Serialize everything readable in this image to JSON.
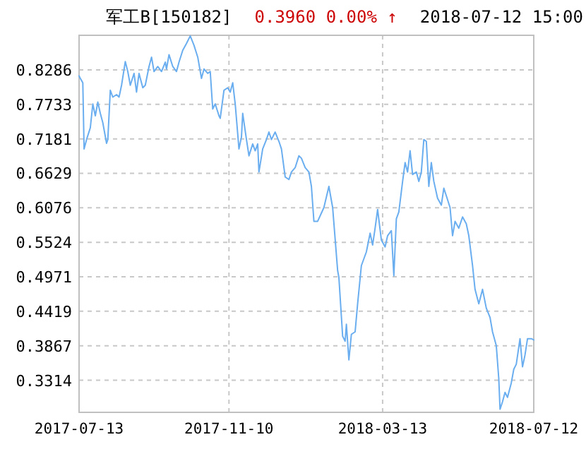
{
  "chart_data": {
    "type": "line",
    "title": "军工B[150182]",
    "subtitle": "0.3960  0.00% ↑",
    "annotations": [
      "2018-07-12 15:00"
    ],
    "x": [
      "2017-07-13",
      "2017-07-14",
      "2017-07-16",
      "2017-07-17",
      "2017-07-19",
      "2017-07-22",
      "2017-07-24",
      "2017-07-26",
      "2017-07-28",
      "2017-07-30",
      "2017-08-01",
      "2017-08-04",
      "2017-08-05",
      "2017-08-07",
      "2017-08-09",
      "2017-08-12",
      "2017-08-14",
      "2017-08-16",
      "2017-08-19",
      "2017-08-21",
      "2017-08-23",
      "2017-08-26",
      "2017-08-28",
      "2017-08-30",
      "2017-09-02",
      "2017-09-04",
      "2017-09-07",
      "2017-09-09",
      "2017-09-11",
      "2017-09-14",
      "2017-09-17",
      "2017-09-20",
      "2017-09-21",
      "2017-09-23",
      "2017-09-26",
      "2017-09-29",
      "2017-10-01",
      "2017-10-04",
      "2017-10-07",
      "2017-10-10",
      "2017-10-13",
      "2017-10-16",
      "2017-10-19",
      "2017-10-21",
      "2017-10-24",
      "2017-10-26",
      "2017-10-28",
      "2017-10-30",
      "2017-11-02",
      "2017-11-03",
      "2017-11-06",
      "2017-11-09",
      "2017-11-11",
      "2017-11-13",
      "2017-11-15",
      "2017-11-18",
      "2017-11-20",
      "2017-11-21",
      "2017-11-24",
      "2017-11-26",
      "2017-11-29",
      "2017-12-01",
      "2017-12-03",
      "2017-12-04",
      "2017-12-07",
      "2017-12-10",
      "2017-12-12",
      "2017-12-14",
      "2017-12-17",
      "2017-12-20",
      "2017-12-22",
      "2017-12-25",
      "2017-12-28",
      "2017-12-30",
      "2018-01-02",
      "2018-01-05",
      "2018-01-07",
      "2018-01-10",
      "2018-01-13",
      "2018-01-15",
      "2018-01-17",
      "2018-01-20",
      "2018-01-25",
      "2018-01-29",
      "2018-02-01",
      "2018-02-05",
      "2018-02-06",
      "2018-02-09",
      "2018-02-11",
      "2018-02-12",
      "2018-02-14",
      "2018-02-16",
      "2018-02-19",
      "2018-02-21",
      "2018-02-24",
      "2018-02-28",
      "2018-03-03",
      "2018-03-05",
      "2018-03-07",
      "2018-03-09",
      "2018-03-12",
      "2018-03-15",
      "2018-03-17",
      "2018-03-20",
      "2018-03-22",
      "2018-03-24",
      "2018-03-26",
      "2018-03-29",
      "2018-03-31",
      "2018-04-02",
      "2018-04-04",
      "2018-04-06",
      "2018-04-09",
      "2018-04-11",
      "2018-04-13",
      "2018-04-15",
      "2018-04-17",
      "2018-04-19",
      "2018-04-21",
      "2018-04-23",
      "2018-04-26",
      "2018-04-29",
      "2018-05-01",
      "2018-05-03",
      "2018-05-06",
      "2018-05-08",
      "2018-05-10",
      "2018-05-13",
      "2018-05-16",
      "2018-05-19",
      "2018-05-21",
      "2018-05-24",
      "2018-05-26",
      "2018-05-29",
      "2018-06-01",
      "2018-06-04",
      "2018-06-07",
      "2018-06-09",
      "2018-06-12",
      "2018-06-14",
      "2018-06-15",
      "2018-06-17",
      "2018-06-19",
      "2018-06-21",
      "2018-06-24",
      "2018-06-26",
      "2018-06-28",
      "2018-07-01",
      "2018-07-03",
      "2018-07-05",
      "2018-07-07",
      "2018-07-10",
      "2018-07-12"
    ],
    "series": [
      {
        "color": "#6aaef0",
        "values": [
          0.819,
          0.815,
          0.808,
          0.702,
          0.717,
          0.736,
          0.774,
          0.755,
          0.777,
          0.759,
          0.744,
          0.711,
          0.717,
          0.796,
          0.785,
          0.789,
          0.785,
          0.804,
          0.842,
          0.826,
          0.804,
          0.823,
          0.793,
          0.823,
          0.8,
          0.804,
          0.834,
          0.849,
          0.826,
          0.834,
          0.826,
          0.841,
          0.83,
          0.853,
          0.834,
          0.826,
          0.841,
          0.86,
          0.871,
          0.883,
          0.868,
          0.849,
          0.815,
          0.83,
          0.823,
          0.826,
          0.766,
          0.774,
          0.755,
          0.751,
          0.796,
          0.8,
          0.793,
          0.808,
          0.774,
          0.702,
          0.721,
          0.759,
          0.717,
          0.691,
          0.71,
          0.699,
          0.71,
          0.665,
          0.702,
          0.717,
          0.729,
          0.717,
          0.729,
          0.714,
          0.702,
          0.657,
          0.653,
          0.665,
          0.672,
          0.691,
          0.687,
          0.672,
          0.665,
          0.642,
          0.586,
          0.586,
          0.608,
          0.642,
          0.608,
          0.507,
          0.496,
          0.402,
          0.394,
          0.421,
          0.364,
          0.405,
          0.409,
          0.454,
          0.515,
          0.537,
          0.567,
          0.548,
          0.575,
          0.605,
          0.556,
          0.545,
          0.563,
          0.571,
          0.499,
          0.59,
          0.601,
          0.65,
          0.68,
          0.665,
          0.699,
          0.661,
          0.665,
          0.65,
          0.665,
          0.717,
          0.714,
          0.642,
          0.68,
          0.65,
          0.623,
          0.612,
          0.639,
          0.627,
          0.608,
          0.563,
          0.586,
          0.575,
          0.593,
          0.582,
          0.563,
          0.515,
          0.477,
          0.454,
          0.477,
          0.447,
          0.432,
          0.409,
          0.387,
          0.334,
          0.285,
          0.297,
          0.312,
          0.304,
          0.327,
          0.349,
          0.357,
          0.398,
          0.353,
          0.372,
          0.398,
          0.398,
          0.396
        ]
      }
    ],
    "xlim": [
      "2017-07-13",
      "2018-07-12"
    ],
    "xticks": [
      "2017-07-13",
      "2017-11-10",
      "2018-03-13",
      "2018-07-12"
    ],
    "ylim": [
      0.28,
      0.884
    ],
    "yticks": [
      {
        "value": 0.8286,
        "label": "0.8286"
      },
      {
        "value": 0.7733,
        "label": "0.7733"
      },
      {
        "value": 0.7181,
        "label": "0.7181"
      },
      {
        "value": 0.6629,
        "label": "0.6629"
      },
      {
        "value": 0.6076,
        "label": "0.6076"
      },
      {
        "value": 0.5524,
        "label": "0.5524"
      },
      {
        "value": 0.4971,
        "label": "0.4971"
      },
      {
        "value": 0.4419,
        "label": "0.4419"
      },
      {
        "value": 0.3867,
        "label": "0.3867"
      },
      {
        "value": 0.3314,
        "label": "0.3314"
      }
    ],
    "grid": true,
    "line_style": "solid"
  }
}
